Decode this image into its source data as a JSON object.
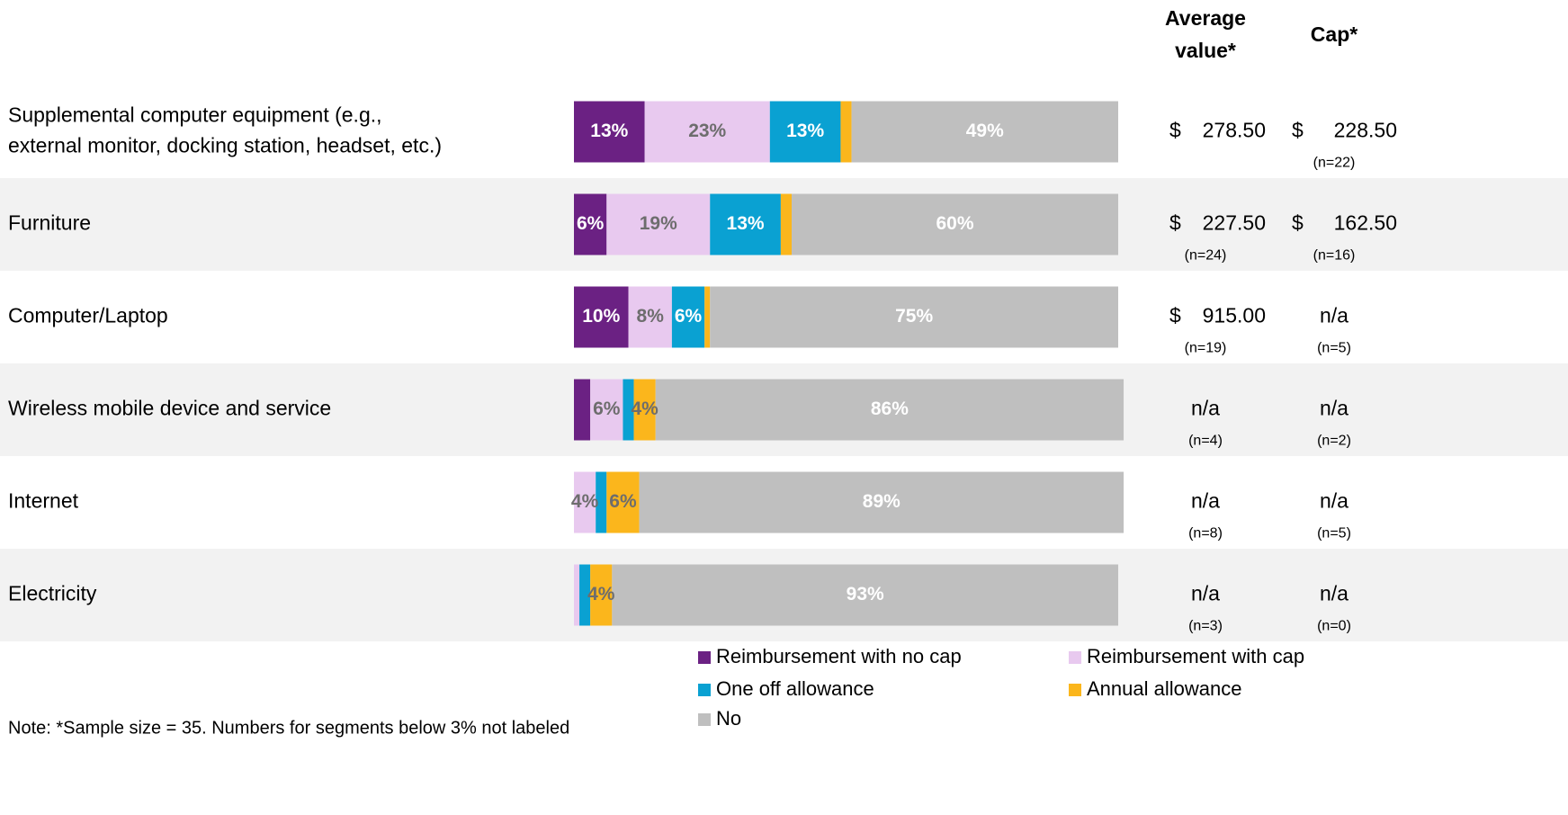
{
  "chart_data": {
    "type": "stacked-bar-horizontal",
    "categories": [
      [
        "Supplemental computer equipment  (e.g.,",
        "external monitor, docking station, headset, etc.)"
      ],
      "Furniture",
      "Computer/Laptop",
      "Wireless mobile device and service",
      "Internet",
      "Electricity"
    ],
    "xlim": [
      0,
      100
    ],
    "series": [
      {
        "name": "Reimbursement with no cap",
        "color": "#6b2183",
        "label_color": "#ffffff",
        "values": [
          13,
          6,
          10,
          3,
          0,
          0
        ],
        "value_labels": [
          "13%",
          "6%",
          "10%",
          null,
          null,
          null
        ]
      },
      {
        "name": "Reimbursement with cap",
        "color": "#e8c9ef",
        "label_color": "#6d6d6d",
        "values": [
          23,
          19,
          8,
          6,
          4,
          1
        ],
        "value_labels": [
          "23%",
          "19%",
          "8%",
          "6%",
          "4%",
          null
        ]
      },
      {
        "name": "One off allowance",
        "color": "#0aa1d2",
        "label_color": "#ffffff",
        "values": [
          13,
          13,
          6,
          2,
          2,
          2
        ],
        "value_labels": [
          "13%",
          "13%",
          "6%",
          null,
          null,
          null
        ]
      },
      {
        "name": "Annual allowance",
        "color": "#fbb61c",
        "label_color": "#6d6d6d",
        "values": [
          2,
          2,
          1,
          4,
          6,
          4
        ],
        "value_labels": [
          null,
          null,
          null,
          "4%",
          "6%",
          "4%"
        ]
      },
      {
        "name": "No",
        "color": "#bfbfbf",
        "label_color": "#ffffff",
        "values": [
          49,
          60,
          75,
          86,
          89,
          93
        ],
        "value_labels": [
          "49%",
          "60%",
          "75%",
          "86%",
          "89%",
          "93%"
        ]
      }
    ],
    "columns": [
      {
        "header": [
          "Average",
          "value*"
        ],
        "cells": [
          {
            "currency": "$",
            "amount": "278.50",
            "n": null
          },
          {
            "currency": "$",
            "amount": "227.50",
            "n": "(n=24)"
          },
          {
            "currency": "$",
            "amount": "915.00",
            "n": "(n=19)"
          },
          {
            "currency": null,
            "amount": "n/a",
            "n": "(n=4)"
          },
          {
            "currency": null,
            "amount": "n/a",
            "n": "(n=8)"
          },
          {
            "currency": null,
            "amount": "n/a",
            "n": "(n=3)"
          }
        ]
      },
      {
        "header": [
          "Cap*"
        ],
        "cells": [
          {
            "currency": "$",
            "amount": "228.50",
            "n": "(n=22)"
          },
          {
            "currency": "$",
            "amount": "162.50",
            "n": "(n=16)"
          },
          {
            "currency": null,
            "amount": "n/a",
            "n": "(n=5)"
          },
          {
            "currency": null,
            "amount": "n/a",
            "n": "(n=2)"
          },
          {
            "currency": null,
            "amount": "n/a",
            "n": "(n=5)"
          },
          {
            "currency": null,
            "amount": "n/a",
            "n": "(n=0)"
          }
        ]
      }
    ],
    "note": "Note: *Sample size = 35. Numbers for segments below 3% not labeled"
  }
}
